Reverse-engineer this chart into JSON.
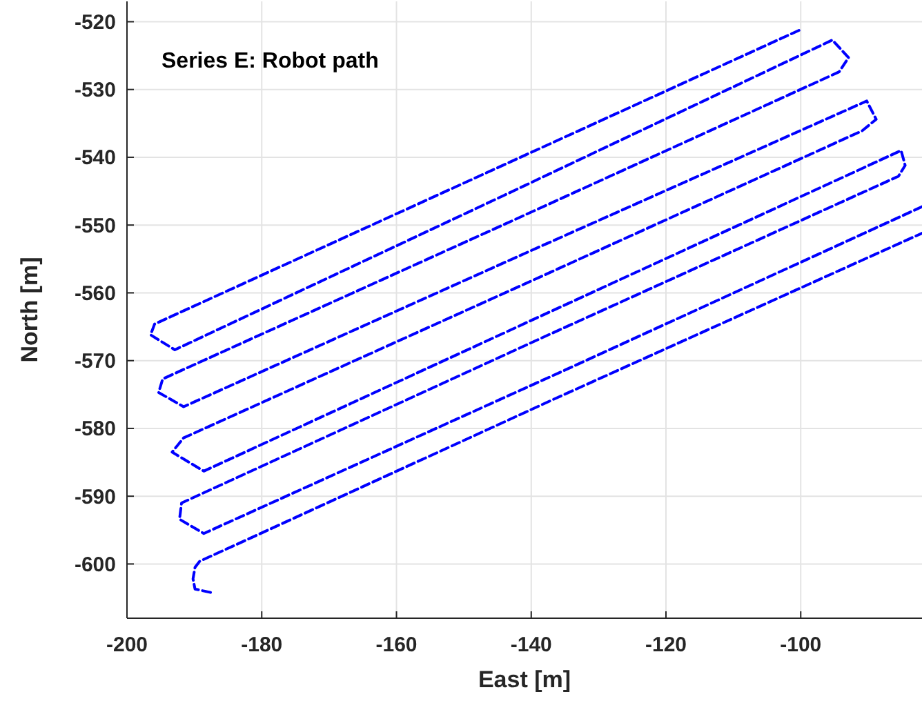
{
  "chart_data": {
    "type": "line",
    "title": "Series E: Robot path",
    "xlabel": "East [m]",
    "ylabel": "North [m]",
    "xlim": [
      -200,
      -82
    ],
    "ylim": [
      -608,
      -517
    ],
    "xticks": [
      -200,
      -180,
      -160,
      -140,
      -120,
      -100
    ],
    "yticks": [
      -520,
      -530,
      -540,
      -550,
      -560,
      -570,
      -580,
      -590,
      -600
    ],
    "grid": true,
    "marker": "none",
    "line_style": "dashed",
    "series": [
      {
        "color": "#0000ff",
        "x": [
          -187.6,
          -189.9,
          -190.2,
          -189.9,
          -189.2,
          -136,
          -82,
          null,
          -82,
          -135,
          -188.6,
          -192.2,
          -191.9,
          -139,
          -85.5,
          -84.5,
          -85.1,
          -137,
          -188.6,
          -193.3,
          -191.6,
          -141,
          -90.9,
          -88.8,
          -90.2,
          -141,
          -191.6,
          -195.3,
          -194.7,
          -144,
          -94.3,
          -92.9,
          -95.3,
          -144,
          -192.9,
          -196.5,
          -195.9,
          -148,
          -100.1
        ],
        "values": [
          -604.2,
          -603.7,
          -602.2,
          -600.5,
          -599.6,
          -575.4,
          -551.2,
          null,
          -547.3,
          -571.4,
          -595.5,
          -593.4,
          -591.0,
          -566.9,
          -542.8,
          -541.2,
          -539.0,
          -562.7,
          -586.3,
          -583.5,
          -581.4,
          -558.7,
          -536.1,
          -534.4,
          -531.7,
          -554.2,
          -576.8,
          -574.7,
          -572.7,
          -549.9,
          -527.4,
          -525.3,
          -522.7,
          -545.6,
          -568.4,
          -566.2,
          -564.6,
          -542.9,
          -521.2
        ]
      }
    ]
  }
}
